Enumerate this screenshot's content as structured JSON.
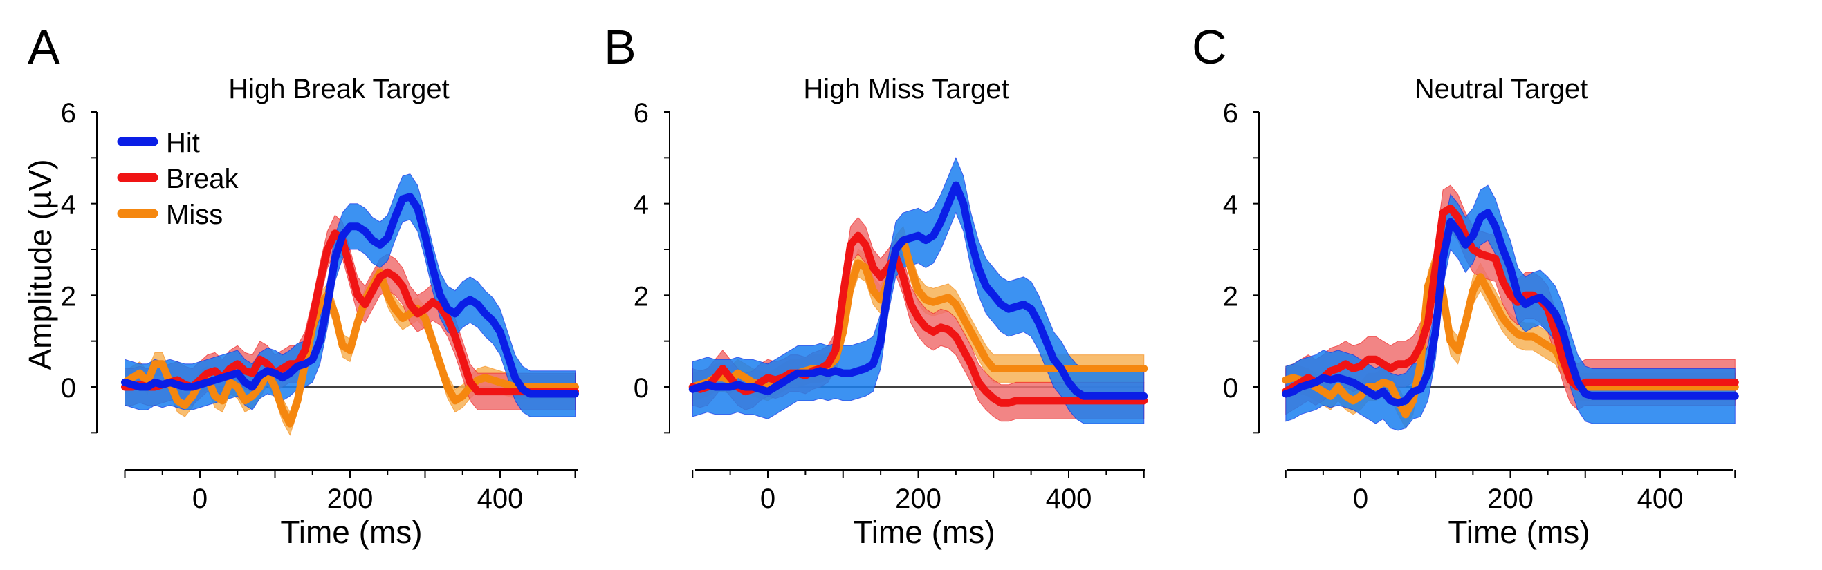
{
  "chart_data": [
    {
      "type": "line",
      "panel_letter": "A",
      "title": "High Break Target",
      "xlabel": "Time (ms)",
      "ylabel": "Amplitude (µV)",
      "x_ticks": [
        "0",
        "200",
        "400"
      ],
      "y_ticks": [
        "0",
        "2",
        "4",
        "6"
      ],
      "xlim": [
        -100,
        500
      ],
      "ylim": [
        -1,
        6
      ],
      "legend": {
        "position": "top-left",
        "entries": [
          "Hit",
          "Break",
          "Miss"
        ]
      },
      "x": [
        -100,
        -90,
        -80,
        -70,
        -60,
        -50,
        -40,
        -30,
        -20,
        -10,
        0,
        10,
        20,
        30,
        40,
        50,
        60,
        70,
        80,
        90,
        100,
        110,
        120,
        130,
        140,
        150,
        160,
        170,
        180,
        190,
        200,
        210,
        220,
        230,
        240,
        250,
        260,
        270,
        280,
        290,
        300,
        310,
        320,
        330,
        340,
        350,
        360,
        370,
        380,
        390,
        400,
        410,
        420,
        430,
        440,
        450,
        460,
        470,
        480,
        490,
        500
      ],
      "series": [
        {
          "name": "Hit",
          "color": "#0a1ee6",
          "band_color": "#1a7ff0",
          "band_halfwidth": 0.5,
          "values": [
            0.1,
            0.05,
            0.0,
            0.0,
            0.1,
            0.05,
            0.1,
            0.05,
            0.0,
            0.0,
            0.05,
            0.1,
            0.15,
            0.2,
            0.25,
            0.3,
            0.1,
            0.0,
            0.25,
            0.35,
            0.3,
            0.2,
            0.3,
            0.45,
            0.5,
            0.6,
            1.0,
            1.8,
            2.8,
            3.3,
            3.5,
            3.5,
            3.4,
            3.2,
            3.1,
            3.25,
            3.7,
            4.1,
            4.15,
            3.9,
            3.3,
            2.6,
            2.0,
            1.7,
            1.6,
            1.8,
            1.9,
            1.8,
            1.6,
            1.45,
            1.2,
            0.7,
            0.2,
            -0.05,
            -0.15,
            -0.15,
            -0.15,
            -0.15,
            -0.15,
            -0.15,
            -0.15
          ]
        },
        {
          "name": "Break",
          "color": "#f01414",
          "band_color": "#f07070",
          "band_halfwidth": 0.4,
          "values": [
            0.0,
            0.0,
            0.05,
            0.0,
            0.0,
            0.05,
            0.1,
            0.15,
            0.05,
            0.0,
            0.15,
            0.3,
            0.35,
            0.2,
            0.4,
            0.5,
            0.35,
            0.3,
            0.6,
            0.5,
            0.3,
            0.4,
            0.5,
            0.5,
            0.8,
            1.5,
            2.3,
            3.0,
            3.35,
            3.2,
            2.6,
            2.0,
            1.8,
            2.1,
            2.4,
            2.5,
            2.4,
            2.2,
            1.8,
            1.6,
            1.7,
            1.85,
            1.75,
            1.5,
            1.1,
            0.6,
            0.1,
            -0.1,
            -0.1,
            -0.1,
            -0.1,
            -0.1,
            -0.1,
            -0.1,
            -0.1,
            -0.1,
            -0.1,
            -0.1,
            -0.1,
            -0.1,
            -0.1
          ]
        },
        {
          "name": "Miss",
          "color": "#f5870f",
          "band_color": "#f7b256",
          "band_halfwidth": 0.25,
          "values": [
            0.1,
            0.2,
            0.3,
            0.1,
            0.5,
            0.5,
            0.1,
            -0.3,
            -0.4,
            -0.2,
            0.1,
            0.2,
            -0.2,
            -0.3,
            0.1,
            0.0,
            -0.3,
            -0.2,
            0.0,
            0.3,
            0.0,
            -0.5,
            -0.8,
            -0.3,
            0.5,
            1.3,
            1.8,
            2.0,
            1.6,
            0.9,
            0.8,
            1.4,
            1.9,
            2.2,
            2.5,
            2.0,
            1.7,
            1.5,
            1.6,
            1.7,
            1.5,
            1.0,
            0.5,
            0.0,
            -0.3,
            -0.2,
            0.0,
            0.15,
            0.2,
            0.15,
            0.1,
            0.05,
            0.0,
            0.0,
            0.0,
            0.0,
            0.0,
            0.0,
            0.0,
            0.0,
            0.0
          ]
        }
      ]
    },
    {
      "type": "line",
      "panel_letter": "B",
      "title": "High Miss Target",
      "xlabel": "Time (ms)",
      "ylabel": "",
      "x_ticks": [
        "0",
        "200",
        "400"
      ],
      "y_ticks": [
        "0",
        "2",
        "4",
        "6"
      ],
      "xlim": [
        -100,
        500
      ],
      "ylim": [
        -1,
        6
      ],
      "x": [
        -100,
        -90,
        -80,
        -70,
        -60,
        -50,
        -40,
        -30,
        -20,
        -10,
        0,
        10,
        20,
        30,
        40,
        50,
        60,
        70,
        80,
        90,
        100,
        110,
        120,
        130,
        140,
        150,
        160,
        170,
        180,
        190,
        200,
        210,
        220,
        230,
        240,
        250,
        260,
        270,
        280,
        290,
        300,
        310,
        320,
        330,
        340,
        350,
        360,
        370,
        380,
        390,
        400,
        410,
        420,
        430,
        440,
        450,
        460,
        470,
        480,
        490,
        500
      ],
      "series": [
        {
          "name": "Hit",
          "color": "#0a1ee6",
          "band_color": "#1a7ff0",
          "band_halfwidth": 0.6,
          "values": [
            -0.05,
            0.0,
            0.05,
            0.0,
            0.0,
            0.0,
            0.05,
            0.0,
            0.0,
            -0.05,
            -0.1,
            0.0,
            0.1,
            0.2,
            0.3,
            0.3,
            0.3,
            0.35,
            0.3,
            0.35,
            0.3,
            0.3,
            0.35,
            0.4,
            0.5,
            1.0,
            2.2,
            3.0,
            3.2,
            3.25,
            3.3,
            3.2,
            3.3,
            3.6,
            4.0,
            4.4,
            4.0,
            3.2,
            2.6,
            2.2,
            2.0,
            1.8,
            1.7,
            1.75,
            1.8,
            1.7,
            1.4,
            1.0,
            0.6,
            0.4,
            0.1,
            -0.1,
            -0.2,
            -0.2,
            -0.2,
            -0.2,
            -0.2,
            -0.2,
            -0.2,
            -0.2,
            -0.2
          ]
        },
        {
          "name": "Break",
          "color": "#f01414",
          "band_color": "#f07070",
          "band_halfwidth": 0.4,
          "values": [
            0.0,
            -0.05,
            0.0,
            0.2,
            0.4,
            0.2,
            0.0,
            -0.1,
            -0.05,
            0.1,
            0.2,
            0.15,
            0.2,
            0.3,
            0.3,
            0.25,
            0.35,
            0.4,
            0.5,
            0.8,
            2.0,
            3.1,
            3.3,
            3.1,
            2.6,
            2.4,
            2.6,
            2.85,
            2.4,
            1.8,
            1.5,
            1.3,
            1.2,
            1.3,
            1.25,
            1.1,
            0.8,
            0.5,
            0.1,
            -0.1,
            -0.25,
            -0.35,
            -0.35,
            -0.3,
            -0.3,
            -0.3,
            -0.3,
            -0.3,
            -0.3,
            -0.3,
            -0.3,
            -0.3,
            -0.3,
            -0.3,
            -0.3,
            -0.3,
            -0.3,
            -0.3,
            -0.3,
            -0.3,
            -0.3
          ]
        },
        {
          "name": "Miss",
          "color": "#f5870f",
          "band_color": "#f7b256",
          "band_halfwidth": 0.3,
          "values": [
            0.0,
            0.05,
            0.1,
            0.2,
            0.2,
            0.15,
            0.3,
            0.2,
            0.1,
            0.05,
            0.0,
            0.1,
            0.2,
            0.3,
            0.3,
            0.35,
            0.4,
            0.4,
            0.45,
            0.6,
            1.2,
            2.2,
            2.7,
            2.6,
            2.1,
            1.9,
            2.3,
            3.0,
            3.2,
            2.6,
            2.1,
            1.9,
            1.85,
            1.9,
            1.95,
            1.8,
            1.5,
            1.2,
            0.9,
            0.6,
            0.4,
            0.4,
            0.4,
            0.4,
            0.4,
            0.4,
            0.4,
            0.4,
            0.4,
            0.4,
            0.4,
            0.4,
            0.4,
            0.4,
            0.4,
            0.4,
            0.4,
            0.4,
            0.4,
            0.4,
            0.4
          ]
        }
      ]
    },
    {
      "type": "line",
      "panel_letter": "C",
      "title": "Neutral Target",
      "xlabel": "Time (ms)",
      "ylabel": "",
      "x_ticks": [
        "0",
        "200",
        "400"
      ],
      "y_ticks": [
        "0",
        "2",
        "4",
        "6"
      ],
      "xlim": [
        -100,
        500
      ],
      "ylim": [
        -1,
        6
      ],
      "x": [
        -100,
        -90,
        -80,
        -70,
        -60,
        -50,
        -40,
        -30,
        -20,
        -10,
        0,
        10,
        20,
        30,
        40,
        50,
        60,
        70,
        80,
        90,
        100,
        110,
        120,
        130,
        140,
        150,
        160,
        170,
        180,
        190,
        200,
        210,
        220,
        230,
        240,
        250,
        260,
        270,
        280,
        290,
        300,
        310,
        320,
        330,
        340,
        350,
        360,
        370,
        380,
        390,
        400,
        410,
        420,
        430,
        440,
        450,
        460,
        470,
        480,
        490,
        500
      ],
      "series": [
        {
          "name": "Hit",
          "color": "#0a1ee6",
          "band_color": "#1a7ff0",
          "band_halfwidth": 0.6,
          "values": [
            -0.15,
            -0.1,
            0.0,
            0.05,
            0.1,
            0.2,
            0.15,
            0.2,
            0.15,
            0.1,
            0.0,
            -0.1,
            -0.2,
            -0.1,
            -0.3,
            -0.35,
            -0.3,
            -0.1,
            -0.05,
            0.3,
            1.2,
            2.8,
            3.6,
            3.4,
            3.1,
            3.3,
            3.7,
            3.8,
            3.5,
            3.0,
            2.6,
            2.0,
            1.8,
            1.9,
            1.95,
            1.8,
            1.6,
            1.2,
            0.6,
            0.1,
            -0.15,
            -0.2,
            -0.2,
            -0.2,
            -0.2,
            -0.2,
            -0.2,
            -0.2,
            -0.2,
            -0.2,
            -0.2,
            -0.2,
            -0.2,
            -0.2,
            -0.2,
            -0.2,
            -0.2,
            -0.2,
            -0.2,
            -0.2,
            -0.2
          ]
        },
        {
          "name": "Break",
          "color": "#f01414",
          "band_color": "#f07070",
          "band_halfwidth": 0.5,
          "values": [
            -0.1,
            0.0,
            0.1,
            0.2,
            0.1,
            0.2,
            0.35,
            0.4,
            0.5,
            0.4,
            0.45,
            0.6,
            0.6,
            0.5,
            0.4,
            0.5,
            0.5,
            0.6,
            0.9,
            1.4,
            2.6,
            3.8,
            3.9,
            3.7,
            3.3,
            3.0,
            2.9,
            2.85,
            2.8,
            2.3,
            2.0,
            1.85,
            2.0,
            2.0,
            1.9,
            1.7,
            1.2,
            0.6,
            0.15,
            0.0,
            0.1,
            0.1,
            0.1,
            0.1,
            0.1,
            0.1,
            0.1,
            0.1,
            0.1,
            0.1,
            0.1,
            0.1,
            0.1,
            0.1,
            0.1,
            0.1,
            0.1,
            0.1,
            0.1,
            0.1,
            0.1
          ]
        },
        {
          "name": "Miss",
          "color": "#f5870f",
          "band_color": "#f7b256",
          "band_halfwidth": 0.3,
          "values": [
            0.15,
            0.2,
            0.15,
            0.1,
            0.0,
            -0.1,
            -0.2,
            0.0,
            -0.2,
            -0.3,
            -0.2,
            0.0,
            0.0,
            0.1,
            0.05,
            -0.3,
            -0.6,
            -0.3,
            0.5,
            2.2,
            2.7,
            2.0,
            1.0,
            0.8,
            1.4,
            2.1,
            2.4,
            2.1,
            1.8,
            1.5,
            1.3,
            1.15,
            1.1,
            1.1,
            1.0,
            0.9,
            0.8,
            0.5,
            0.2,
            0.0,
            0.0,
            0.0,
            0.0,
            0.0,
            0.0,
            0.0,
            0.0,
            0.0,
            0.0,
            0.0,
            0.0,
            0.0,
            0.0,
            0.0,
            0.0,
            0.0,
            0.0,
            0.0,
            0.0,
            0.0,
            0.0
          ]
        }
      ]
    }
  ]
}
